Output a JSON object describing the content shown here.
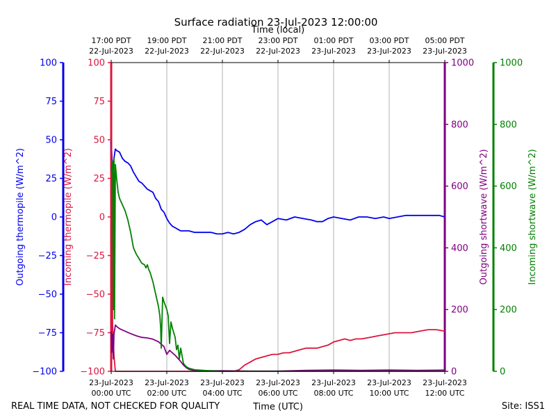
{
  "chart_data": {
    "type": "line",
    "title": "Surface radiation 23-Jul-2023 12:00:00",
    "top_axis_label": "Time (local)",
    "bottom_axis_label": "Time (UTC)",
    "footer_left": "REAL TIME DATA, NOT CHECKED FOR QUALITY",
    "footer_right": "Site: ISS1",
    "x_range_utc_hours": [
      0,
      12
    ],
    "grid": "vertical at bottom ticks",
    "bottom_ticks": [
      {
        "hour": 0,
        "line1": "23-Jul-2023",
        "line2": "00:00 UTC"
      },
      {
        "hour": 2,
        "line1": "23-Jul-2023",
        "line2": "02:00 UTC"
      },
      {
        "hour": 4,
        "line1": "23-Jul-2023",
        "line2": "04:00 UTC"
      },
      {
        "hour": 6,
        "line1": "23-Jul-2023",
        "line2": "06:00 UTC"
      },
      {
        "hour": 8,
        "line1": "23-Jul-2023",
        "line2": "08:00 UTC"
      },
      {
        "hour": 10,
        "line1": "23-Jul-2023",
        "line2": "10:00 UTC"
      },
      {
        "hour": 12,
        "line1": "23-Jul-2023",
        "line2": "12:00 UTC"
      }
    ],
    "top_ticks": [
      {
        "hour": 0,
        "line1": "17:00 PDT",
        "line2": "22-Jul-2023"
      },
      {
        "hour": 2,
        "line1": "19:00 PDT",
        "line2": "22-Jul-2023"
      },
      {
        "hour": 4,
        "line1": "21:00 PDT",
        "line2": "22-Jul-2023"
      },
      {
        "hour": 6,
        "line1": "23:00 PDT",
        "line2": "22-Jul-2023"
      },
      {
        "hour": 8,
        "line1": "01:00 PDT",
        "line2": "23-Jul-2023"
      },
      {
        "hour": 10,
        "line1": "03:00 PDT",
        "line2": "23-Jul-2023"
      },
      {
        "hour": 12,
        "line1": "05:00 PDT",
        "line2": "23-Jul-2023"
      }
    ],
    "axes": [
      {
        "id": "outgoing_thermopile",
        "label": "Outgoing thermopile (W/m^2)",
        "color": "#0000ee",
        "ylim": [
          -100,
          100
        ],
        "ticks": [
          -100,
          -75,
          -50,
          -25,
          0,
          25,
          50,
          75,
          100
        ],
        "side": "left-outer"
      },
      {
        "id": "incoming_thermopile",
        "label": "Incoming thermopile (W/m^2)",
        "color": "#dc143c",
        "ylim": [
          -100,
          100
        ],
        "ticks": [
          -100,
          -75,
          -50,
          -25,
          0,
          25,
          50,
          75,
          100
        ],
        "side": "left-inner"
      },
      {
        "id": "outgoing_shortwave",
        "label": "Outgoing shortwave (W/m^2)",
        "color": "#800080",
        "ylim": [
          0,
          1000
        ],
        "ticks": [
          0,
          200,
          400,
          600,
          800,
          1000
        ],
        "side": "right-inner"
      },
      {
        "id": "incoming_shortwave",
        "label": "Incoming shortwave (W/m^2)",
        "color": "#008000",
        "ylim": [
          0,
          1000
        ],
        "ticks": [
          0,
          200,
          400,
          600,
          800,
          1000
        ],
        "side": "right-outer"
      }
    ],
    "series": [
      {
        "axis": "outgoing_thermopile",
        "color": "#0000ee",
        "x": [
          0,
          0.05,
          0.1,
          0.15,
          0.2,
          0.3,
          0.4,
          0.5,
          0.6,
          0.7,
          0.8,
          0.9,
          1.0,
          1.1,
          1.2,
          1.3,
          1.4,
          1.5,
          1.6,
          1.7,
          1.8,
          1.9,
          2.0,
          2.1,
          2.2,
          2.3,
          2.4,
          2.5,
          2.6,
          2.8,
          3.0,
          3.2,
          3.4,
          3.6,
          3.8,
          4.0,
          4.2,
          4.4,
          4.6,
          4.8,
          5.0,
          5.2,
          5.4,
          5.6,
          5.8,
          6.0,
          6.3,
          6.6,
          6.9,
          7.2,
          7.4,
          7.6,
          7.8,
          8.0,
          8.3,
          8.6,
          8.9,
          9.2,
          9.5,
          9.8,
          10.0,
          10.3,
          10.6,
          11.0,
          11.4,
          11.8,
          12.0
        ],
        "y": [
          49,
          30,
          38,
          44,
          43,
          42,
          38,
          36,
          35,
          33,
          29,
          26,
          23,
          22,
          20,
          18,
          17,
          16,
          12,
          10,
          5,
          3,
          -1,
          -4,
          -6,
          -7,
          -8,
          -9,
          -9,
          -9,
          -10,
          -10,
          -10,
          -10,
          -11,
          -11,
          -10,
          -11,
          -10,
          -8,
          -5,
          -3,
          -2,
          -5,
          -3,
          -1,
          -2,
          0,
          -1,
          -2,
          -3,
          -3,
          -1,
          0,
          -1,
          -2,
          0,
          0,
          -1,
          0,
          -1,
          0,
          1,
          1,
          1,
          1,
          0
        ]
      },
      {
        "axis": "incoming_thermopile",
        "color": "#dc143c",
        "x": [
          0,
          0.02,
          0.05,
          0.1,
          0.15,
          0.2,
          0.25,
          0.3,
          0.4,
          0.6,
          1.0,
          2.0,
          3.0,
          4.0,
          4.4,
          4.6,
          4.8,
          5.0,
          5.2,
          5.4,
          5.6,
          5.8,
          6.0,
          6.2,
          6.4,
          6.6,
          6.8,
          7.0,
          7.2,
          7.4,
          7.6,
          7.8,
          8.0,
          8.2,
          8.4,
          8.6,
          8.8,
          9.0,
          9.3,
          9.6,
          9.9,
          10.2,
          10.5,
          10.8,
          11.1,
          11.4,
          11.7,
          12.0
        ],
        "y": [
          95,
          30,
          -70,
          -90,
          -100,
          -100,
          -100,
          -100,
          -100,
          -100,
          -100,
          -100,
          -100,
          -100,
          -100,
          -99,
          -96,
          -94,
          -92,
          -91,
          -90,
          -89,
          -89,
          -88,
          -88,
          -87,
          -86,
          -85,
          -85,
          -85,
          -84,
          -83,
          -81,
          -80,
          -79,
          -80,
          -79,
          -79,
          -78,
          -77,
          -76,
          -75,
          -75,
          -75,
          -74,
          -73,
          -73,
          -74
        ]
      },
      {
        "axis": "outgoing_shortwave",
        "color": "#800080",
        "x": [
          0,
          0.02,
          0.05,
          0.08,
          0.1,
          0.15,
          0.2,
          0.3,
          0.5,
          0.7,
          0.9,
          1.1,
          1.3,
          1.5,
          1.7,
          1.8,
          1.9,
          2.0,
          2.1,
          2.2,
          2.3,
          2.4,
          2.5,
          2.6,
          2.7,
          2.8,
          3.0,
          3.5,
          4.0,
          5.0,
          6.0,
          7.0,
          8.0,
          9.0,
          10.0,
          11.0,
          12.0
        ],
        "y": [
          130,
          60,
          120,
          40,
          120,
          150,
          145,
          138,
          130,
          122,
          115,
          110,
          108,
          104,
          96,
          88,
          80,
          55,
          68,
          60,
          52,
          42,
          32,
          20,
          12,
          6,
          3,
          2,
          2,
          1,
          1,
          3,
          4,
          3,
          4,
          3,
          4
        ]
      },
      {
        "axis": "incoming_shortwave",
        "color": "#008000",
        "x": [
          0,
          0.05,
          0.08,
          0.1,
          0.12,
          0.15,
          0.2,
          0.25,
          0.3,
          0.4,
          0.5,
          0.6,
          0.7,
          0.8,
          0.9,
          1.0,
          1.1,
          1.2,
          1.25,
          1.3,
          1.35,
          1.4,
          1.5,
          1.6,
          1.7,
          1.75,
          1.78,
          1.8,
          1.85,
          1.9,
          2.0,
          2.05,
          2.1,
          2.15,
          2.2,
          2.3,
          2.35,
          2.4,
          2.45,
          2.5,
          2.6,
          2.7,
          2.8,
          3.0,
          3.5,
          4.0,
          5.0,
          6.0,
          7.0,
          8.0,
          9.0,
          10.0,
          11.0,
          12.0
        ],
        "y": [
          650,
          680,
          200,
          690,
          170,
          670,
          620,
          580,
          560,
          540,
          520,
          490,
          450,
          400,
          380,
          365,
          350,
          345,
          335,
          345,
          330,
          320,
          290,
          250,
          210,
          180,
          140,
          75,
          240,
          225,
          200,
          180,
          90,
          160,
          140,
          110,
          70,
          85,
          40,
          75,
          25,
          15,
          10,
          5,
          2,
          0,
          0,
          0,
          0,
          0,
          0,
          0,
          0,
          0
        ]
      }
    ]
  }
}
